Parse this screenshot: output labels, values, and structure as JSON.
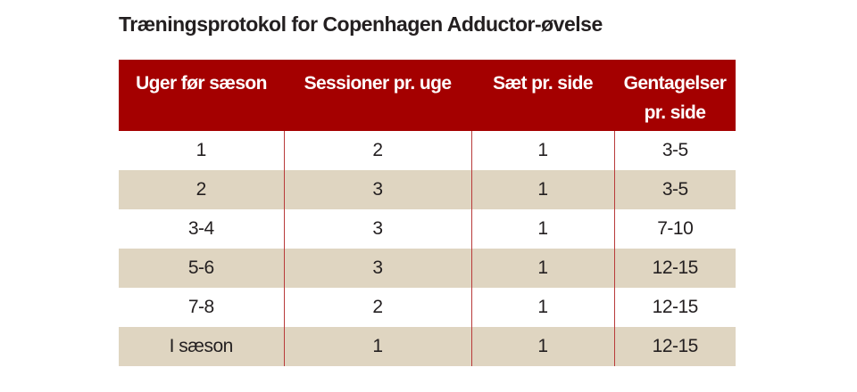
{
  "title": "Træningsprotokol for Copenhagen Adductor-øvelse",
  "table": {
    "headers": [
      "Uger før sæson",
      "Sessioner pr. uge",
      "Sæt pr. side",
      "Gentagelser pr. side"
    ],
    "rows": [
      [
        "1",
        "2",
        "1",
        "3-5"
      ],
      [
        "2",
        "3",
        "1",
        "3-5"
      ],
      [
        "3-4",
        "3",
        "1",
        "7-10"
      ],
      [
        "5-6",
        "3",
        "1",
        "12-15"
      ],
      [
        "7-8",
        "2",
        "1",
        "12-15"
      ],
      [
        "I sæson",
        "1",
        "1",
        "12-15"
      ]
    ]
  },
  "colors": {
    "header_background": "#a40000",
    "stripe_background": "#dfd5c1",
    "column_divider": "#b83a3a"
  }
}
